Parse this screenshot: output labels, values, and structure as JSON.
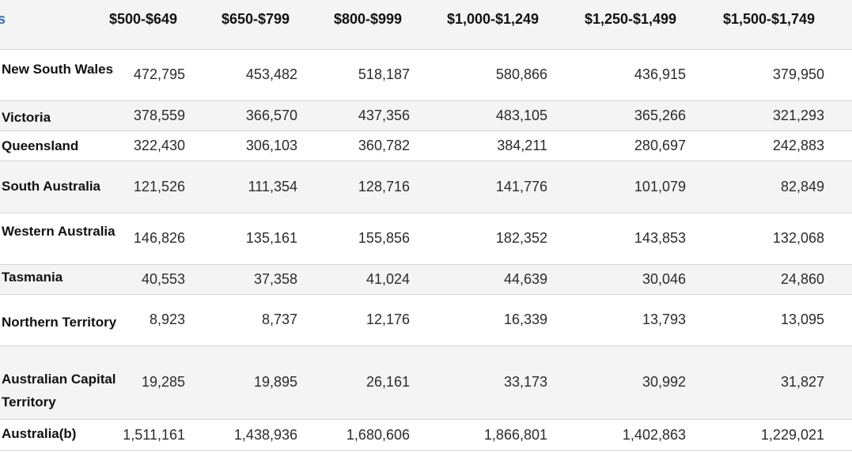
{
  "table": {
    "columns": [
      "$500-$649",
      "$650-$799",
      "$800-$999",
      "$1,000-$1,249",
      "$1,250-$1,499",
      "$1,500-$1,749"
    ],
    "rows": [
      {
        "label": "New South Wales",
        "values": [
          "472,795",
          "453,482",
          "518,187",
          "580,866",
          "436,915",
          "379,950"
        ]
      },
      {
        "label": "Victoria",
        "values": [
          "378,559",
          "366,570",
          "437,356",
          "483,105",
          "365,266",
          "321,293"
        ]
      },
      {
        "label": "Queensland",
        "values": [
          "322,430",
          "306,103",
          "360,782",
          "384,211",
          "280,697",
          "242,883"
        ]
      },
      {
        "label": "South Australia",
        "values": [
          "121,526",
          "111,354",
          "128,716",
          "141,776",
          "101,079",
          "82,849"
        ]
      },
      {
        "label": "Western Australia",
        "values": [
          "146,826",
          "135,161",
          "155,856",
          "182,352",
          "143,853",
          "132,068"
        ]
      },
      {
        "label": "Tasmania",
        "values": [
          "40,553",
          "37,358",
          "41,024",
          "44,639",
          "30,046",
          "24,860"
        ]
      },
      {
        "label": "Northern Territory",
        "values": [
          "8,923",
          "8,737",
          "12,176",
          "16,339",
          "13,793",
          "13,095"
        ]
      },
      {
        "label": "Australian Capital Territory",
        "values": [
          "19,285",
          "19,895",
          "26,161",
          "33,173",
          "30,992",
          "31,827"
        ]
      },
      {
        "label": "Australia(b)",
        "values": [
          "1,511,161",
          "1,438,936",
          "1,680,606",
          "1,866,801",
          "1,402,863",
          "1,229,021"
        ]
      }
    ]
  },
  "chart_data": {
    "type": "table",
    "columns": [
      "$500-$649",
      "$650-$799",
      "$800-$999",
      "$1,000-$1,249",
      "$1,250-$1,499",
      "$1,500-$1,749"
    ],
    "rows": [
      {
        "label": "New South Wales",
        "values": [
          472795,
          453482,
          518187,
          580866,
          436915,
          379950
        ]
      },
      {
        "label": "Victoria",
        "values": [
          378559,
          366570,
          437356,
          483105,
          365266,
          321293
        ]
      },
      {
        "label": "Queensland",
        "values": [
          322430,
          306103,
          360782,
          384211,
          280697,
          242883
        ]
      },
      {
        "label": "South Australia",
        "values": [
          121526,
          111354,
          128716,
          141776,
          101079,
          82849
        ]
      },
      {
        "label": "Western Australia",
        "values": [
          146826,
          135161,
          155856,
          182352,
          143853,
          132068
        ]
      },
      {
        "label": "Tasmania",
        "values": [
          40553,
          37358,
          41024,
          44639,
          30046,
          24860
        ]
      },
      {
        "label": "Northern Territory",
        "values": [
          8923,
          8737,
          12176,
          16339,
          13793,
          13095
        ]
      },
      {
        "label": "Australian Capital Territory",
        "values": [
          19285,
          19895,
          26161,
          33173,
          30992,
          31827
        ]
      },
      {
        "label": "Australia(b)",
        "values": [
          1511161,
          1438936,
          1680606,
          1866801,
          1402863,
          1229021
        ]
      }
    ]
  }
}
